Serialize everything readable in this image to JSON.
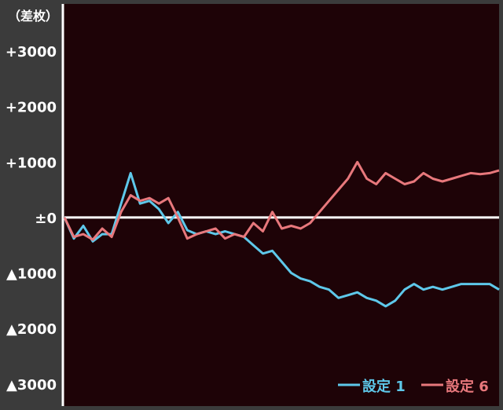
{
  "chart_data": {
    "type": "line",
    "unit_label": "（差枚）",
    "x": [
      0,
      1,
      2,
      3,
      4,
      5,
      6,
      7,
      8,
      9,
      10,
      11,
      12,
      13,
      14,
      15,
      16,
      17,
      18,
      19,
      20,
      21,
      22,
      23,
      24,
      25,
      26,
      27,
      28,
      29,
      30,
      31,
      32,
      33,
      34,
      35,
      36,
      37,
      38,
      39,
      40,
      41,
      42,
      43,
      44,
      45,
      46
    ],
    "series": [
      {
        "name": "設定 1",
        "color": "#5ec8ea",
        "values": [
          0,
          -380,
          -150,
          -430,
          -300,
          -300,
          250,
          800,
          250,
          300,
          150,
          -100,
          100,
          -230,
          -300,
          -250,
          -300,
          -250,
          -300,
          -350,
          -500,
          -650,
          -600,
          -800,
          -1000,
          -1100,
          -1150,
          -1250,
          -1300,
          -1450,
          -1400,
          -1350,
          -1450,
          -1500,
          -1600,
          -1500,
          -1300,
          -1200,
          -1300,
          -1250,
          -1300,
          -1250,
          -1200,
          -1200,
          -1200,
          -1200,
          -1300
        ]
      },
      {
        "name": "設定 6",
        "color": "#e8787c",
        "values": [
          0,
          -350,
          -300,
          -400,
          -200,
          -350,
          100,
          400,
          300,
          350,
          250,
          350,
          0,
          -380,
          -300,
          -250,
          -200,
          -380,
          -300,
          -350,
          -100,
          -250,
          100,
          -200,
          -150,
          -200,
          -100,
          100,
          300,
          500,
          700,
          1000,
          700,
          600,
          800,
          700,
          600,
          650,
          800,
          700,
          650,
          700,
          750,
          800,
          780,
          800,
          850
        ]
      }
    ],
    "y_ticks": [
      {
        "value": 3000,
        "label": "+3000"
      },
      {
        "value": 2000,
        "label": "+2000"
      },
      {
        "value": 1000,
        "label": "+1000"
      },
      {
        "value": 0,
        "label": "±0"
      },
      {
        "value": -1000,
        "label": "▲1000"
      },
      {
        "value": -2000,
        "label": "▲2000"
      },
      {
        "value": -3000,
        "label": "▲3000"
      }
    ],
    "ylim": [
      -3400,
      3850
    ],
    "zero_line": true,
    "grid": false,
    "legend_position": "bottom-right",
    "colors": {
      "frame": "#3b3b3b",
      "plot_background": "#1e0307",
      "axis": "#ffffff",
      "zero_line": "#ffffff",
      "tick_text": "#ffffff"
    }
  }
}
